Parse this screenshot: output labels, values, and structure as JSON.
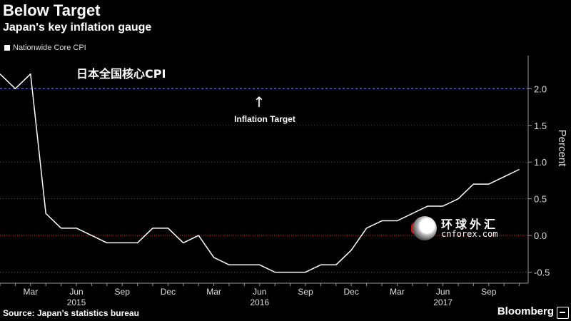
{
  "header": {
    "title": "Below Target",
    "subtitle": "Japan's key inflation gauge"
  },
  "legend": {
    "label": "Nationwide Core CPI"
  },
  "caption_cn": "日本全国核心CPI",
  "annotation": {
    "text": "Inflation Target",
    "arrow": "↑"
  },
  "footer": {
    "source": "Source: Japan's statistics bureau",
    "brand": "Bloomberg"
  },
  "watermark": {
    "cn": "环球外汇",
    "en": "cnforex.com"
  },
  "colors": {
    "background": "#000000",
    "line": "#ffffff",
    "target": "#7a8cff",
    "zero": "#e03030",
    "grid": "#555555"
  },
  "chart_data": {
    "type": "line",
    "ylabel": "Percent",
    "ylim": [
      -0.65,
      2.45
    ],
    "target_value": 2.0,
    "y_ticks": [
      2.0,
      1.5,
      1.0,
      0.5,
      0.0,
      -0.5
    ],
    "y_tick_labels": [
      "2.0",
      "1.5",
      "1.0",
      "0.5",
      "0.0",
      "-0.5"
    ],
    "x_start": "2015-01",
    "x_ticks": [
      {
        "label": "Mar",
        "month_index": 2
      },
      {
        "label": "Jun",
        "month_index": 5
      },
      {
        "label": "Sep",
        "month_index": 8
      },
      {
        "label": "Dec",
        "month_index": 11
      },
      {
        "label": "Mar",
        "month_index": 14
      },
      {
        "label": "Jun",
        "month_index": 17
      },
      {
        "label": "Sep",
        "month_index": 20
      },
      {
        "label": "Dec",
        "month_index": 23
      },
      {
        "label": "Mar",
        "month_index": 26
      },
      {
        "label": "Jun",
        "month_index": 29
      },
      {
        "label": "Sep",
        "month_index": 32
      }
    ],
    "year_labels": [
      {
        "label": "2015",
        "month_index": 5
      },
      {
        "label": "2016",
        "month_index": 17
      },
      {
        "label": "2017",
        "month_index": 29
      }
    ],
    "series": [
      {
        "name": "Nationwide Core CPI",
        "values": [
          2.2,
          2.0,
          2.2,
          0.3,
          0.1,
          0.1,
          0.0,
          -0.1,
          -0.1,
          -0.1,
          0.1,
          0.1,
          -0.1,
          0.0,
          -0.3,
          -0.4,
          -0.4,
          -0.4,
          -0.5,
          -0.5,
          -0.5,
          -0.4,
          -0.4,
          -0.2,
          0.1,
          0.2,
          0.2,
          0.3,
          0.4,
          0.4,
          0.5,
          0.7,
          0.7,
          0.8,
          0.9
        ]
      }
    ]
  }
}
